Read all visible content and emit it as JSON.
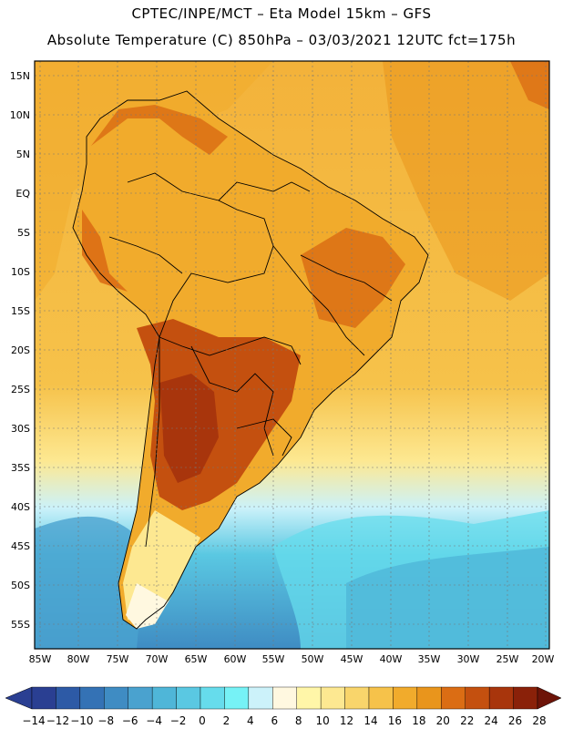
{
  "header": {
    "line1": "CPTEC/INPE/MCT –  Eta Model 15km – GFS",
    "line2": "Absolute Temperature (C) 850hPa – 03/03/2021 12UTC fct=175h"
  },
  "map": {
    "lat_labels": [
      "15N",
      "10N",
      "5N",
      "EQ",
      "5S",
      "10S",
      "15S",
      "20S",
      "25S",
      "30S",
      "35S",
      "40S",
      "45S",
      "50S",
      "55S"
    ],
    "lon_labels": [
      "85W",
      "80W",
      "75W",
      "70W",
      "65W",
      "60W",
      "55W",
      "50W",
      "45W",
      "40W",
      "35W",
      "30W",
      "25W",
      "20W"
    ],
    "lat_range": [
      -58,
      17
    ],
    "lon_range": [
      -86,
      -20
    ],
    "region": "South America"
  },
  "colorbar": {
    "labels": [
      "-14",
      "-12",
      "-10",
      "-8",
      "-6",
      "-4",
      "-2",
      "0",
      "2",
      "4",
      "6",
      "8",
      "10",
      "12",
      "14",
      "16",
      "18",
      "20",
      "22",
      "24",
      "26",
      "28"
    ],
    "colors": [
      "#2a3f92",
      "#2d5aa6",
      "#3472b5",
      "#3f8cc3",
      "#4aa2cf",
      "#4fb6d8",
      "#5ac8e2",
      "#66dcec",
      "#76f2f6",
      "#ccf2fa",
      "#fff8e0",
      "#fff6a8",
      "#fde891",
      "#f9d56b",
      "#f6c24a",
      "#f1ab2c",
      "#e9951c",
      "#db6d14",
      "#c4500f",
      "#a8350c",
      "#8a2109",
      "#6d1408"
    ]
  }
}
